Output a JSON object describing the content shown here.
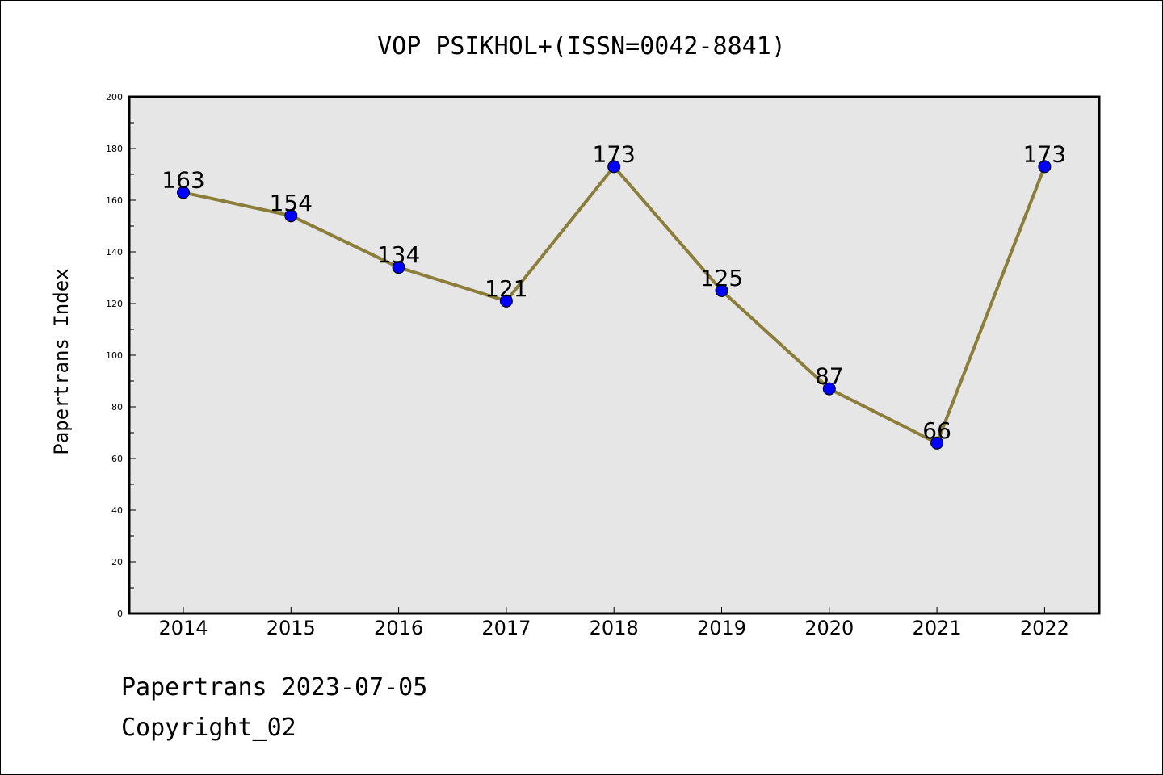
{
  "chart_data": {
    "type": "line",
    "title": "VOP PSIKHOL+(ISSN=0042-8841)",
    "xlabel": "",
    "ylabel": "Papertrans Index",
    "categories": [
      "2014",
      "2015",
      "2016",
      "2017",
      "2018",
      "2019",
      "2020",
      "2021",
      "2022"
    ],
    "series": [
      {
        "values": [
          163,
          154,
          134,
          121,
          173,
          125,
          87,
          66,
          173
        ]
      }
    ],
    "ylim": [
      0,
      200
    ],
    "yticks": [
      0,
      20,
      40,
      60,
      80,
      100,
      120,
      140,
      160,
      180,
      200
    ],
    "data_labels": true,
    "grid": false,
    "colors": {
      "line": "#8b7d3a",
      "marker": "#0000ff",
      "plot_background": "#e6e6e6"
    }
  },
  "footer": {
    "source_line": "Papertrans 2023-07-05",
    "copyright_line": "Copyright_02"
  }
}
